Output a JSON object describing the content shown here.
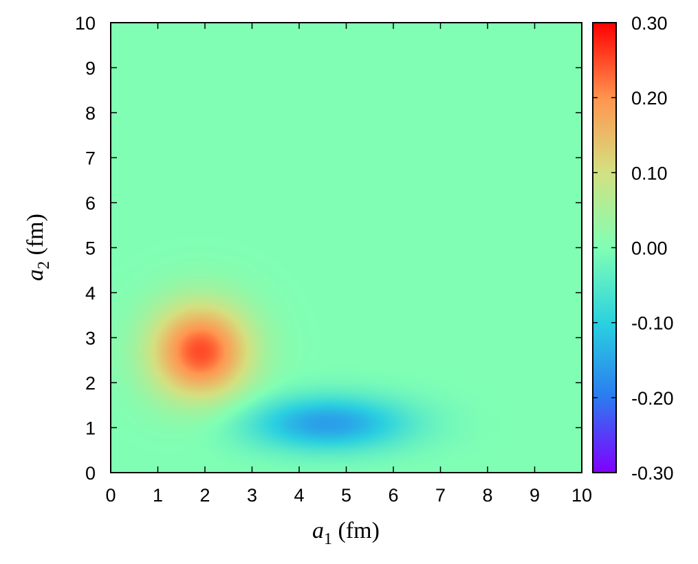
{
  "chart_data": {
    "type": "heatmap",
    "title": "",
    "xlabel": {
      "symbol": "a",
      "subscript": "1",
      "unit": "(fm)"
    },
    "ylabel": {
      "symbol": "a",
      "subscript": "2",
      "unit": "(fm)"
    },
    "xlim": [
      0,
      10
    ],
    "ylim": [
      0,
      10
    ],
    "x_ticks": [
      "0",
      "1",
      "2",
      "3",
      "4",
      "5",
      "6",
      "7",
      "8",
      "9",
      "10"
    ],
    "y_ticks": [
      "0",
      "1",
      "2",
      "3",
      "4",
      "5",
      "6",
      "7",
      "8",
      "9",
      "10"
    ],
    "colorbar": {
      "range": [
        -0.3,
        0.3
      ],
      "ticks": [
        "-0.30",
        "-0.20",
        "-0.10",
        "0.00",
        "0.10",
        "0.20",
        "0.30"
      ],
      "palette": [
        "#8000ff",
        "#2b7cf0",
        "#2ad0e0",
        "#80ffb4",
        "#d4e080",
        "#ff9650",
        "#ff0000"
      ]
    },
    "background_value": 0.0,
    "features": [
      {
        "kind": "maximum",
        "x": 1.9,
        "y": 2.7,
        "value": 0.25
      },
      {
        "kind": "minimum",
        "x": 4.6,
        "y": 1.1,
        "value": -0.16
      }
    ],
    "grid": false
  }
}
